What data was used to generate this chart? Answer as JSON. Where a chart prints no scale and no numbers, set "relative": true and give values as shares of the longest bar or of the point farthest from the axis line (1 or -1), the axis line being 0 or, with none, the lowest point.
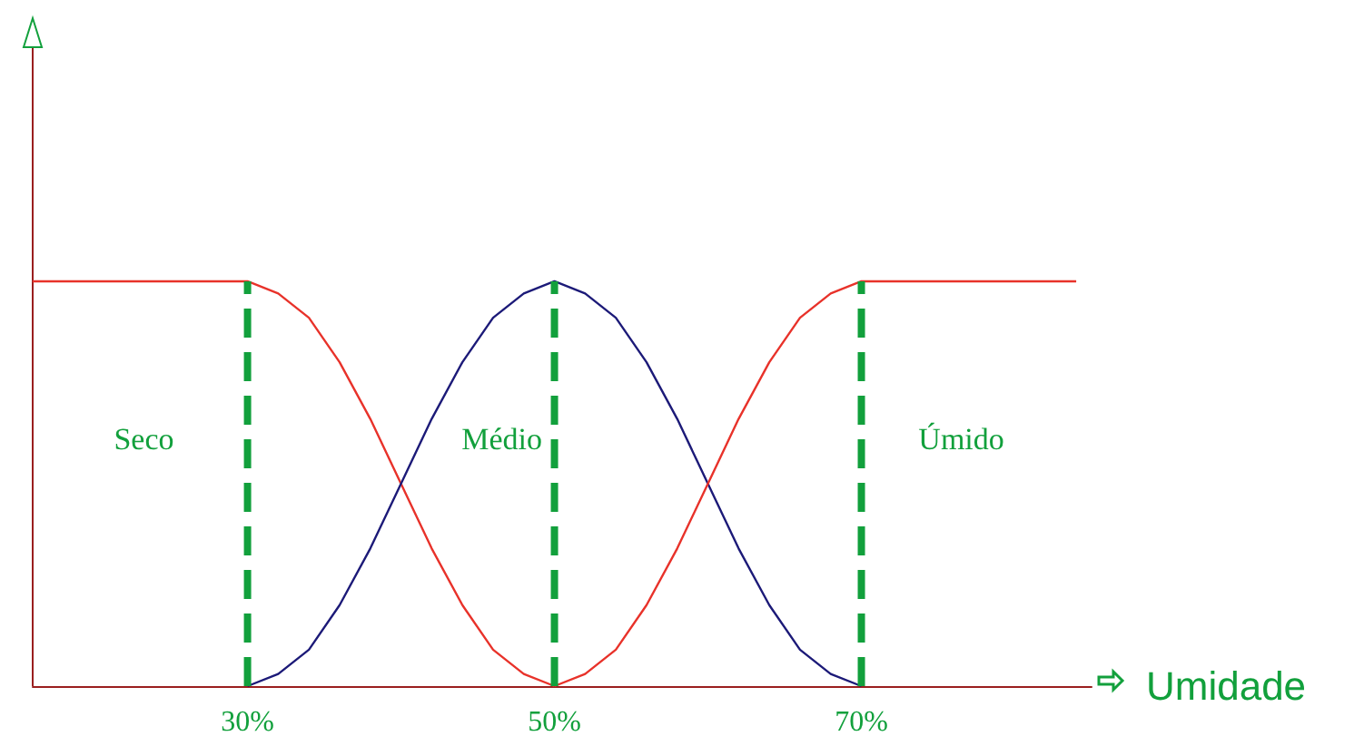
{
  "chart_data": {
    "type": "line",
    "relative": true,
    "xlabel": "Umidade",
    "xlim": [
      16,
      85
    ],
    "xticks": [
      {
        "value": 30,
        "label": "30%"
      },
      {
        "value": 50,
        "label": "50%"
      },
      {
        "value": 70,
        "label": "70%"
      }
    ],
    "grid": false,
    "marker": "none",
    "line_style": "solid",
    "series": [
      {
        "color": "#e8322a",
        "x": [
          16,
          30,
          32,
          34,
          36,
          38,
          40,
          42,
          44,
          46,
          48,
          50
        ],
        "values": [
          1,
          1,
          0.97,
          0.91,
          0.8,
          0.66,
          0.5,
          0.34,
          0.2,
          0.09,
          0.03,
          0
        ]
      },
      {
        "color": "#1c1a78",
        "x": [
          30,
          32,
          34,
          36,
          38,
          40,
          42,
          44,
          46,
          48,
          50,
          52,
          54,
          56,
          58,
          60,
          62,
          64,
          66,
          68,
          70
        ],
        "values": [
          0,
          0.03,
          0.09,
          0.2,
          0.34,
          0.5,
          0.66,
          0.8,
          0.91,
          0.97,
          1,
          0.97,
          0.91,
          0.8,
          0.66,
          0.5,
          0.34,
          0.2,
          0.09,
          0.03,
          0
        ]
      },
      {
        "color": "#e8322a",
        "x": [
          50,
          52,
          54,
          56,
          58,
          60,
          62,
          64,
          66,
          68,
          70,
          84
        ],
        "values": [
          0,
          0.03,
          0.09,
          0.2,
          0.34,
          0.5,
          0.66,
          0.8,
          0.91,
          0.97,
          1,
          1
        ]
      }
    ],
    "annotations": [
      "Seco",
      "Médio",
      "Úmido"
    ],
    "ref_lines": [
      {
        "axis": "x",
        "value": 30,
        "label": null,
        "color": "#12a03c",
        "line_style": "dashed"
      },
      {
        "axis": "x",
        "value": 50,
        "label": null,
        "color": "#12a03c",
        "line_style": "dashed"
      },
      {
        "axis": "x",
        "value": 70,
        "label": null,
        "color": "#12a03c",
        "line_style": "dashed"
      }
    ]
  }
}
